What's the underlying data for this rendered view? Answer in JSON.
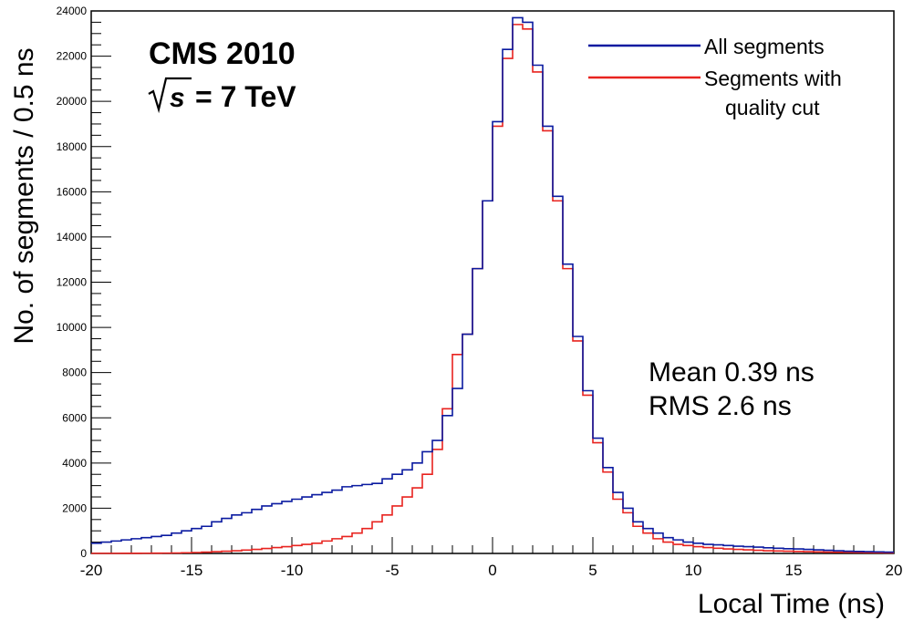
{
  "chart_data": {
    "type": "histogram-step",
    "title": "",
    "xlabel": "Local Time (ns)",
    "ylabel": "No. of segments / 0.5 ns",
    "xlim": [
      -20,
      20
    ],
    "ylim": [
      0,
      24000
    ],
    "bin_width": 0.5,
    "x_ticks": [
      -20,
      -15,
      -10,
      -5,
      0,
      5,
      10,
      15,
      20
    ],
    "y_ticks": [
      0,
      2000,
      4000,
      6000,
      8000,
      10000,
      12000,
      14000,
      16000,
      18000,
      20000,
      22000,
      24000
    ],
    "legend_position": "top-right",
    "annotations": {
      "experiment": "CMS 2010",
      "energy_sqrt": "s",
      "energy_value": "= 7 TeV",
      "mean": "Mean 0.39 ns",
      "rms": "RMS 2.6 ns"
    },
    "bin_low_edges": [
      -20.0,
      -19.5,
      -19.0,
      -18.5,
      -18.0,
      -17.5,
      -17.0,
      -16.5,
      -16.0,
      -15.5,
      -15.0,
      -14.5,
      -14.0,
      -13.5,
      -13.0,
      -12.5,
      -12.0,
      -11.5,
      -11.0,
      -10.5,
      -10.0,
      -9.5,
      -9.0,
      -8.5,
      -8.0,
      -7.5,
      -7.0,
      -6.5,
      -6.0,
      -5.5,
      -5.0,
      -4.5,
      -4.0,
      -3.5,
      -3.0,
      -2.5,
      -2.0,
      -1.5,
      -1.0,
      -0.5,
      0.0,
      0.5,
      1.0,
      1.5,
      2.0,
      2.5,
      3.0,
      3.5,
      4.0,
      4.5,
      5.0,
      5.5,
      6.0,
      6.5,
      7.0,
      7.5,
      8.0,
      8.5,
      9.0,
      9.5,
      10.0,
      10.5,
      11.0,
      11.5,
      12.0,
      12.5,
      13.0,
      13.5,
      14.0,
      14.5,
      15.0,
      15.5,
      16.0,
      16.5,
      17.0,
      17.5,
      18.0,
      18.5,
      19.0,
      19.5
    ],
    "series": [
      {
        "name": "All segments",
        "color": "#0a1aa0",
        "values": [
          450,
          500,
          550,
          600,
          650,
          700,
          750,
          800,
          900,
          1000,
          1100,
          1200,
          1400,
          1550,
          1700,
          1800,
          1950,
          2100,
          2200,
          2300,
          2400,
          2500,
          2600,
          2700,
          2800,
          2950,
          3000,
          3050,
          3100,
          3300,
          3500,
          3700,
          4000,
          4500,
          5000,
          6100,
          7300,
          9700,
          12600,
          15600,
          19100,
          22300,
          23700,
          23500,
          21600,
          18900,
          15800,
          12800,
          9600,
          7200,
          5100,
          3800,
          2700,
          2000,
          1400,
          1100,
          900,
          700,
          600,
          500,
          450,
          400,
          380,
          350,
          320,
          300,
          280,
          250,
          230,
          210,
          200,
          180,
          160,
          140,
          120,
          100,
          90,
          80,
          70,
          60
        ]
      },
      {
        "name": "Segments with quality cut",
        "color": "#e8231f",
        "values": [
          5,
          5,
          5,
          6,
          8,
          10,
          12,
          15,
          20,
          30,
          40,
          60,
          80,
          100,
          120,
          150,
          180,
          220,
          260,
          300,
          350,
          400,
          450,
          550,
          650,
          750,
          900,
          1100,
          1400,
          1700,
          2100,
          2500,
          2900,
          3500,
          4600,
          6400,
          8800,
          9700,
          12600,
          15600,
          18900,
          21900,
          23400,
          23200,
          21300,
          18700,
          15600,
          12600,
          9400,
          7000,
          4900,
          3600,
          2400,
          1800,
          1200,
          900,
          650,
          500,
          400,
          350,
          300,
          260,
          230,
          200,
          180,
          160,
          140,
          120,
          110,
          100,
          90,
          80,
          70,
          60,
          50,
          45,
          40,
          35,
          30,
          25
        ]
      }
    ]
  }
}
